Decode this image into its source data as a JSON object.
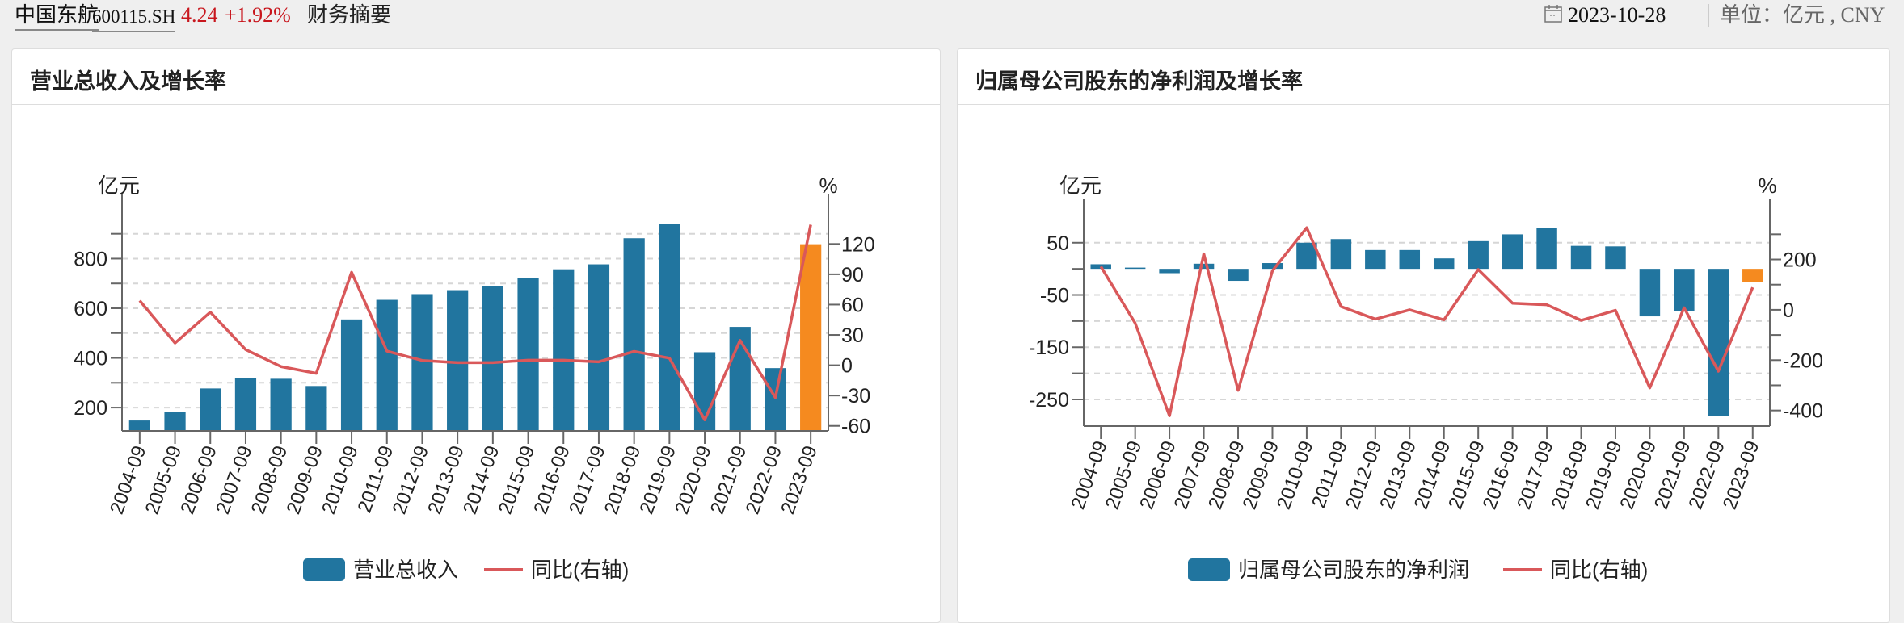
{
  "header": {
    "stock_name": "中国东航",
    "stock_code": "600115.SH",
    "price": "4.24",
    "change": "+1.92%",
    "section": "财务摘要",
    "date": "2023-10-28",
    "unit": "单位：亿元 , CNY",
    "calendar_icon": "calendar-icon",
    "colors": {
      "up": "#c8161d"
    }
  },
  "chart_data": [
    {
      "type": "bar+line",
      "title": "营业总收入及增长率",
      "categories": [
        "2004-09",
        "2005-09",
        "2006-09",
        "2007-09",
        "2008-09",
        "2009-09",
        "2010-09",
        "2011-09",
        "2012-09",
        "2013-09",
        "2014-09",
        "2015-09",
        "2016-09",
        "2017-09",
        "2018-09",
        "2019-09",
        "2020-09",
        "2021-09",
        "2022-09",
        "2023-09"
      ],
      "series": [
        {
          "name": "营业总收入",
          "type": "bar",
          "axis": "left",
          "color": "#21759f",
          "highlight_last_color": "#f58a1f",
          "values": [
            148,
            182,
            277,
            320,
            316,
            287,
            555,
            634,
            657,
            673,
            689,
            722,
            757,
            777,
            882,
            938,
            423,
            525,
            359,
            858
          ]
        },
        {
          "name": "同比(右轴)",
          "type": "line",
          "axis": "right",
          "color": "#d9585a",
          "values": [
            64,
            22,
            52.5,
            15.5,
            -1.3,
            -8,
            92,
            14,
            4.7,
            2.6,
            2.6,
            5,
            5,
            3.4,
            13.7,
            7,
            -54,
            24.6,
            -32,
            139
          ]
        }
      ],
      "left_axis": {
        "label": "亿元",
        "ylim": [
          106,
          977
        ],
        "ticks": [
          200,
          300,
          400,
          500,
          600,
          700,
          800,
          900
        ],
        "tick_labels": [
          "200",
          "",
          "400",
          "",
          "600",
          "",
          "800",
          ""
        ]
      },
      "right_axis": {
        "label": "%",
        "ylim": [
          -65,
          149
        ],
        "ticks": [
          -60,
          -30,
          0,
          30,
          60,
          90,
          120
        ],
        "tick_labels": [
          "-60",
          "-30",
          "0",
          "30",
          "60",
          "90",
          "120"
        ]
      },
      "grid": true,
      "legend": "bottom"
    },
    {
      "type": "bar+line",
      "title": "归属母公司股东的净利润及增长率",
      "categories": [
        "2004-09",
        "2005-09",
        "2006-09",
        "2007-09",
        "2008-09",
        "2009-09",
        "2010-09",
        "2011-09",
        "2012-09",
        "2013-09",
        "2014-09",
        "2015-09",
        "2016-09",
        "2017-09",
        "2018-09",
        "2019-09",
        "2020-09",
        "2021-09",
        "2022-09",
        "2023-09"
      ],
      "series": [
        {
          "name": "归属母公司股东的净利润",
          "type": "bar",
          "axis": "left",
          "color": "#21759f",
          "highlight_last_color": "#f58a1f",
          "values": [
            8.8,
            2.4,
            -8.3,
            9.8,
            -23,
            11,
            50,
            57,
            36,
            36,
            20,
            53,
            66,
            78,
            44,
            43,
            -91,
            -81,
            -281,
            -26
          ]
        },
        {
          "name": "同比(右轴)",
          "type": "line",
          "axis": "right",
          "color": "#d9585a",
          "values": [
            172,
            -53,
            -421,
            222,
            -320,
            155,
            326,
            13,
            -37,
            0,
            -40,
            160,
            26,
            20,
            -42,
            -2,
            -310,
            8,
            -244,
            89
          ]
        }
      ],
      "left_axis": {
        "label": "亿元",
        "ylim": [
          -301,
          96
        ],
        "ticks": [
          -250,
          -200,
          -150,
          -100,
          -50,
          0,
          50
        ],
        "tick_labels": [
          "-250",
          "",
          "-150",
          "",
          "-50",
          "",
          "50"
        ]
      },
      "right_axis": {
        "label": "%",
        "ylim": [
          -462,
          362
        ],
        "ticks": [
          -400,
          -300,
          -200,
          -100,
          0,
          100,
          200,
          300
        ],
        "tick_labels": [
          "-400",
          "",
          "-200",
          "",
          "0",
          "",
          "200",
          ""
        ]
      },
      "grid": true,
      "legend": "bottom"
    }
  ]
}
